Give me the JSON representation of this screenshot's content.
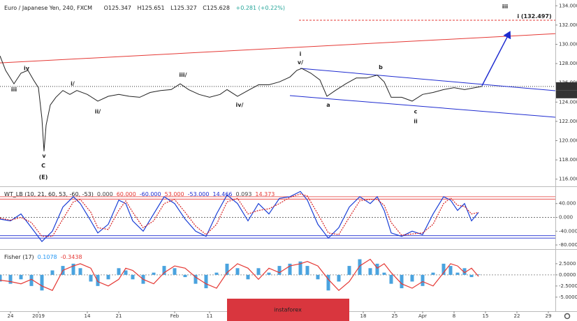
{
  "header": {
    "title": "Euro / Japanese Yen, 240, FXCM",
    "open": "O125.347",
    "high": "H125.651",
    "low": "L125.327",
    "close": "C125.628",
    "change": "+0.281 (+0.22%)"
  },
  "watermark": "instaforex",
  "chart_data": [
    {
      "type": "line",
      "color": "#222222",
      "x": [
        0,
        1.6,
        4,
        6,
        8,
        9.6,
        11,
        12,
        12.6,
        13.2,
        14.4,
        16,
        18,
        20,
        22,
        25,
        28,
        31,
        34,
        37,
        40,
        43,
        46,
        49,
        51.6,
        54,
        57,
        60,
        63,
        65,
        68,
        71,
        74,
        77,
        80,
        83,
        85,
        86.4,
        89,
        91.6,
        93.6,
        96,
        99,
        102,
        105,
        108,
        110,
        112,
        115,
        118,
        121,
        124,
        127,
        130,
        133,
        136,
        138
      ],
      "values": [
        128.8,
        127.3,
        125.9,
        127,
        127.3,
        126.3,
        125.5,
        122.3,
        118.9,
        121.6,
        123.7,
        124.5,
        125.2,
        124.8,
        125.2,
        124.8,
        124.1,
        124.6,
        124.8,
        124.6,
        124.5,
        125,
        125.2,
        125.3,
        125.9,
        125.3,
        124.8,
        124.5,
        124.8,
        125.3,
        124.6,
        125.2,
        125.8,
        125.8,
        126.1,
        126.6,
        127.3,
        127.5,
        127,
        126.3,
        124.6,
        125.2,
        125.9,
        126.5,
        126.5,
        126.8,
        126.1,
        124.5,
        124.5,
        124.1,
        124.8,
        125,
        125.3,
        125.5,
        125.3,
        125.5,
        125.628
      ],
      "xlim": [
        0,
        159
      ],
      "xticks": [
        {
          "value": 3,
          "label": "24"
        },
        {
          "value": 11,
          "label": "2019"
        },
        {
          "value": 25,
          "label": "14"
        },
        {
          "value": 34,
          "label": "21"
        },
        {
          "value": 50,
          "label": "Feb"
        },
        {
          "value": 60,
          "label": "11"
        },
        {
          "value": 104,
          "label": "18"
        },
        {
          "value": 113,
          "label": "25"
        },
        {
          "value": 121,
          "label": "Apr"
        },
        {
          "value": 130,
          "label": "8"
        },
        {
          "value": 139,
          "label": "15"
        },
        {
          "value": 148,
          "label": "22"
        },
        {
          "value": 157,
          "label": "29"
        }
      ],
      "ylim": [
        115.4,
        134.6
      ],
      "yticks": [
        {
          "value": 116,
          "label": "116.000"
        },
        {
          "value": 118,
          "label": "118.000"
        },
        {
          "value": 120,
          "label": "120.000"
        },
        {
          "value": 122,
          "label": "122.000"
        },
        {
          "value": 124,
          "label": "124.000"
        },
        {
          "value": 126,
          "label": "126.000"
        },
        {
          "value": 128,
          "label": "128.000"
        },
        {
          "value": 130,
          "label": "130.000"
        },
        {
          "value": 132,
          "label": "132.000"
        },
        {
          "value": 134,
          "label": "134.000"
        }
      ],
      "last_price": {
        "value": 125.628,
        "label": "125.628"
      },
      "countdown": "02:11:19",
      "target": {
        "value": 132.497,
        "from": 85.6
      },
      "trendlines": [
        {
          "color": "#e53935",
          "x": [
            0,
            159
          ],
          "y": [
            128.07,
            131.1
          ]
        },
        {
          "color": "#1e2bd0",
          "x": [
            86,
            159
          ],
          "y": [
            127.5,
            125.18
          ]
        },
        {
          "color": "#1e2bd0",
          "x": [
            83,
            159
          ],
          "y": [
            124.67,
            122.43
          ]
        },
        {
          "color": "#1e2bd0",
          "x": [
            138,
            146
          ],
          "y": [
            125.7,
            131.3
          ],
          "arrow": true
        }
      ],
      "annotations": [
        {
          "text": "iii",
          "x": 144.6,
          "y": 133.9
        },
        {
          "text": "i (132.497)",
          "x": 153,
          "y": 132.9,
          "color": "#e53935"
        },
        {
          "text": "i",
          "x": 86,
          "y": 129
        },
        {
          "text": "v/",
          "x": 86,
          "y": 128.1
        },
        {
          "text": "a",
          "x": 94,
          "y": 123.7
        },
        {
          "text": "b",
          "x": 109,
          "y": 127.6
        },
        {
          "text": "c",
          "x": 119,
          "y": 123
        },
        {
          "text": "ii",
          "x": 119,
          "y": 122
        },
        {
          "text": "iv",
          "x": 7.6,
          "y": 127.5
        },
        {
          "text": "iii",
          "x": 4,
          "y": 125.3
        },
        {
          "text": "i/",
          "x": 20.8,
          "y": 125.9
        },
        {
          "text": "ii/",
          "x": 28,
          "y": 123
        },
        {
          "text": "iii/",
          "x": 52.4,
          "y": 126.8
        },
        {
          "text": "iv/",
          "x": 68.6,
          "y": 123.7
        },
        {
          "text": "v",
          "x": 12.6,
          "y": 118.4
        },
        {
          "text": "C",
          "x": 12.4,
          "y": 117.4
        },
        {
          "text": "(E)",
          "x": 12.4,
          "y": 116.2
        }
      ]
    },
    {
      "type": "line",
      "title": "WT_LB (10, 21, 60, 53, -60, -53)",
      "x": [
        0,
        3,
        6,
        9,
        12,
        15,
        18,
        21,
        23,
        26,
        28,
        31,
        34,
        36,
        38,
        41,
        44,
        47,
        50,
        53,
        56,
        59,
        62,
        65,
        68,
        71,
        74,
        77,
        80,
        83,
        86,
        88,
        91,
        94,
        97,
        100,
        103,
        106,
        108,
        110,
        112,
        115,
        118,
        121,
        124,
        127,
        129,
        131,
        133,
        135,
        137
      ],
      "series": [
        {
          "color": "#1a3fd6",
          "values": [
            -5,
            -10,
            10,
            -30,
            -70,
            -40,
            30,
            60,
            40,
            -10,
            -45,
            -20,
            50,
            40,
            -10,
            -40,
            10,
            60,
            40,
            -5,
            -40,
            -55,
            10,
            65,
            40,
            -10,
            40,
            10,
            55,
            60,
            75,
            50,
            -20,
            -60,
            -30,
            30,
            60,
            40,
            60,
            20,
            -45,
            -55,
            -40,
            -50,
            10,
            60,
            50,
            20,
            40,
            -10,
            14.466
          ]
        },
        {
          "color": "#d62020",
          "dash": true,
          "values": [
            -2,
            -8,
            0,
            -15,
            -55,
            -55,
            -5,
            45,
            52,
            15,
            -30,
            -35,
            20,
            48,
            15,
            -30,
            -10,
            40,
            52,
            15,
            -25,
            -50,
            -20,
            45,
            55,
            10,
            20,
            25,
            40,
            58,
            68,
            62,
            10,
            -45,
            -50,
            0,
            48,
            52,
            52,
            35,
            -15,
            -52,
            -48,
            -45,
            -20,
            40,
            56,
            35,
            32,
            10,
            14.373
          ]
        }
      ],
      "levels": [
        {
          "value": 0,
          "label": "0.000",
          "color": "#444444"
        },
        {
          "value": 60,
          "label": "60.000",
          "color": "#e53935"
        },
        {
          "value": -60,
          "label": "-60.000",
          "color": "#1e2bd0"
        },
        {
          "value": 53,
          "label": "53.000",
          "color": "#e53935"
        },
        {
          "value": -53,
          "label": "-53.000",
          "color": "#1e2bd0"
        }
      ],
      "readings": [
        {
          "value": 14.466,
          "color": "#1e2bd0"
        },
        {
          "value": 0.093,
          "color": "#444444"
        },
        {
          "value": 14.373,
          "color": "#e53935"
        }
      ],
      "xlim": [
        0,
        159
      ],
      "ylim": [
        -88,
        84
      ],
      "yticks": [
        {
          "value": 40,
          "label": "40.000"
        },
        {
          "value": 0,
          "label": "0.000"
        },
        {
          "value": -40,
          "label": "-40.000"
        },
        {
          "value": -80,
          "label": "-80.000"
        }
      ]
    },
    {
      "type": "combo",
      "title": "Fisher (17)",
      "x": [
        0,
        3,
        6,
        9,
        12,
        15,
        18,
        21,
        23,
        26,
        28,
        31,
        34,
        36,
        38,
        41,
        44,
        47,
        50,
        53,
        56,
        59,
        62,
        65,
        68,
        71,
        74,
        77,
        80,
        83,
        86,
        88,
        91,
        94,
        97,
        100,
        103,
        106,
        108,
        110,
        112,
        115,
        118,
        121,
        124,
        127,
        129,
        131,
        133,
        135,
        137
      ],
      "series": [
        {
          "type": "bar",
          "color": "#4aa3df",
          "values": [
            -1.5,
            -2,
            -1,
            -2.5,
            -3.5,
            1,
            2,
            2.5,
            1.5,
            -1.5,
            -2.5,
            -1,
            1.5,
            1,
            -1,
            -2,
            0.5,
            2,
            1.5,
            -0.5,
            -2,
            -3,
            0.5,
            2.5,
            1.5,
            -1,
            1.5,
            0.5,
            2,
            2.5,
            3,
            2,
            -1,
            -3.5,
            -1.5,
            2,
            3.5,
            1.5,
            2.5,
            0.5,
            -2,
            -3,
            -1.5,
            -2.5,
            0.5,
            2.5,
            2,
            0.5,
            1.5,
            -0.5,
            0.1078
          ]
        },
        {
          "type": "line",
          "color": "#e53935",
          "values": [
            -1.2,
            -1.5,
            -2,
            -1,
            -2.5,
            -3.5,
            1,
            2,
            2.5,
            1.5,
            -1.5,
            -2.5,
            -1,
            1.5,
            1,
            -1,
            -2,
            0.5,
            2,
            1.5,
            -0.5,
            -2,
            -3,
            0.5,
            2.5,
            1.5,
            -1,
            1.5,
            0.5,
            2,
            2.5,
            3,
            2,
            -1,
            -3.5,
            -1.5,
            2,
            3.5,
            1.5,
            2.5,
            0.5,
            -2,
            -3,
            -1.5,
            -2.5,
            0.5,
            2.5,
            2,
            0.5,
            1.5,
            -0.3438
          ]
        }
      ],
      "readings": [
        {
          "value": 0.1078,
          "color": "#2196f3"
        },
        {
          "value": -0.3438,
          "color": "#e53935"
        }
      ],
      "xlim": [
        0,
        159
      ],
      "ylim": [
        -8,
        5.3
      ],
      "yticks": [
        {
          "value": 2.5,
          "label": "2.5000"
        },
        {
          "value": 0,
          "label": "0.0000"
        },
        {
          "value": -2.5,
          "label": "-2.5000"
        },
        {
          "value": -5,
          "label": "-5.0000"
        }
      ]
    }
  ]
}
